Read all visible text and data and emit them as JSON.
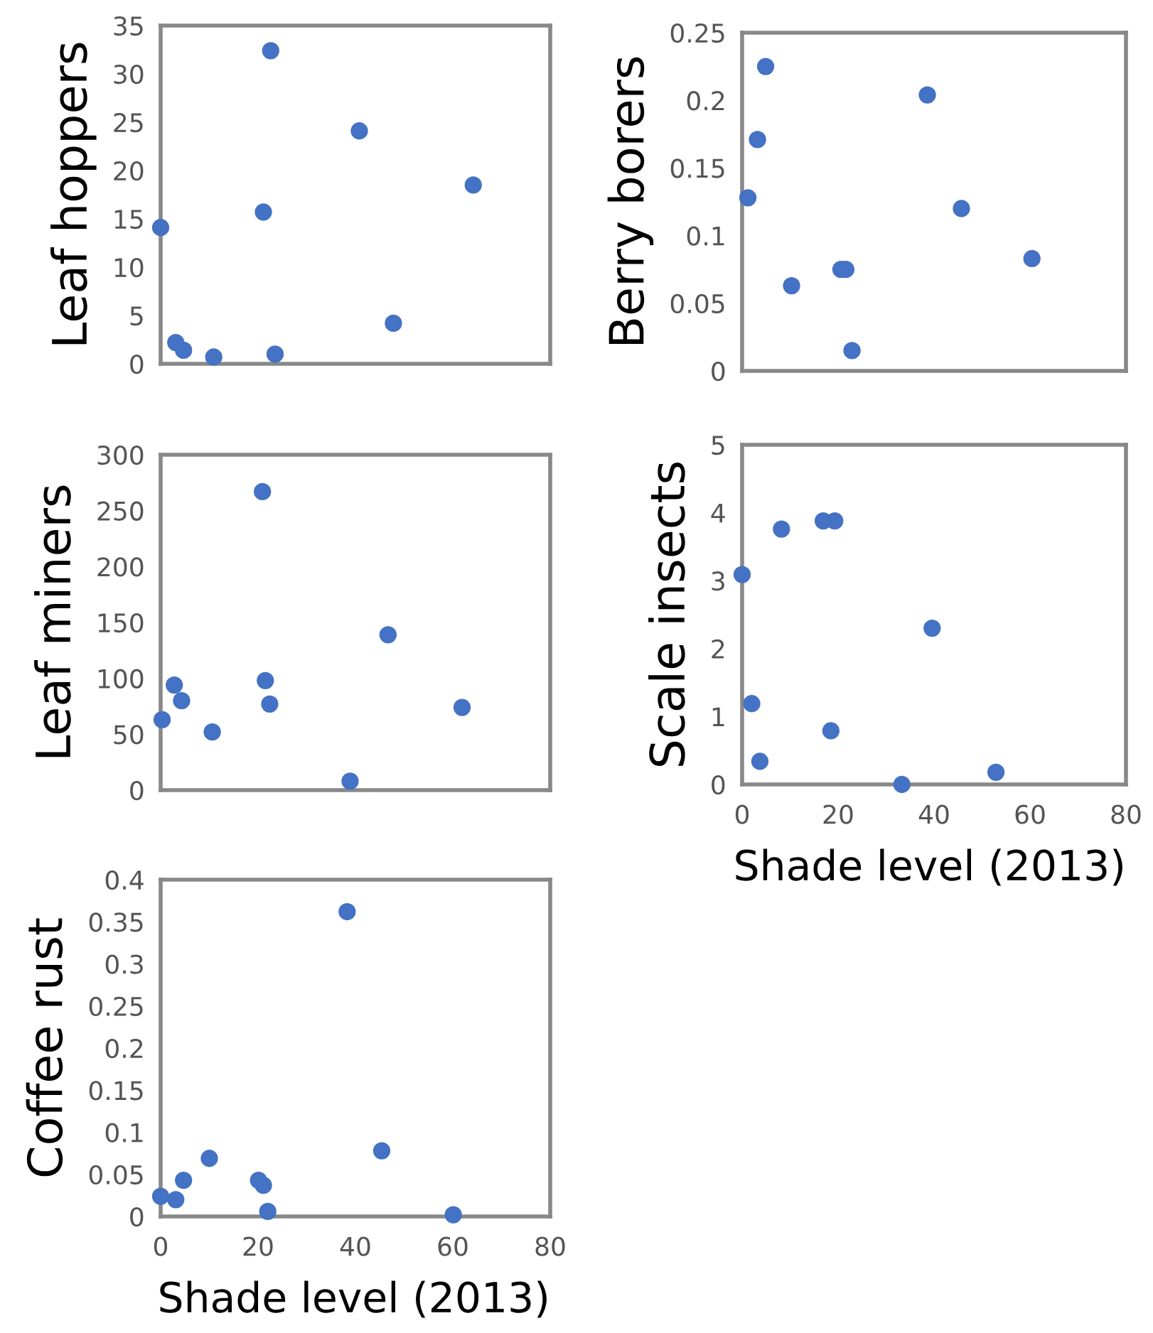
{
  "chart_data": [
    {
      "type": "scatter",
      "ylabel": "Leaf hoppers",
      "xlim": [
        0,
        80
      ],
      "ylim": [
        0,
        35
      ],
      "yticks": [
        0,
        5,
        10,
        15,
        20,
        25,
        30,
        35
      ],
      "xticks": [
        0,
        20,
        40,
        60,
        80
      ],
      "tick_labels": "y",
      "marker": "circle",
      "series": [
        {
          "color": "#4472c4",
          "x": [
            0,
            3.1,
            4.7,
            10.9,
            21.1,
            22.6,
            23.5,
            40.8,
            47.8,
            64.2
          ],
          "values": [
            14.1,
            2.2,
            1.4,
            0.7,
            15.7,
            32.4,
            1.0,
            24.1,
            4.2,
            18.5
          ]
        }
      ]
    },
    {
      "type": "scatter",
      "ylabel": "Berry borers",
      "xlim": [
        0,
        80
      ],
      "ylim": [
        0,
        0.25
      ],
      "yticks": [
        0,
        0.05,
        0.1,
        0.15,
        0.2,
        0.25
      ],
      "xticks": [
        0,
        20,
        40,
        60,
        80
      ],
      "tick_labels": "y",
      "marker": "circle",
      "series": [
        {
          "color": "#4472c4",
          "x": [
            1.2,
            3.2,
            4.9,
            10.3,
            20.6,
            21.6,
            22.9,
            38.6,
            45.7,
            60.4
          ],
          "values": [
            0.128,
            0.171,
            0.225,
            0.063,
            0.075,
            0.075,
            0.015,
            0.204,
            0.12,
            0.083
          ]
        }
      ]
    },
    {
      "type": "scatter",
      "ylabel": "Leaf miners",
      "xlim": [
        0,
        80
      ],
      "ylim": [
        0,
        300
      ],
      "yticks": [
        0,
        50,
        100,
        150,
        200,
        250,
        300
      ],
      "xticks": [
        0,
        20,
        40,
        60,
        80
      ],
      "tick_labels": "y",
      "marker": "circle",
      "series": [
        {
          "color": "#4472c4",
          "x": [
            0.3,
            2.8,
            4.3,
            10.6,
            20.9,
            21.5,
            22.4,
            38.9,
            46.7,
            61.9
          ],
          "values": [
            63,
            94,
            80,
            52,
            267,
            98,
            77,
            8,
            139,
            74
          ]
        }
      ]
    },
    {
      "type": "scatter",
      "ylabel": "Scale insects",
      "xlabel": "Shade level (2013)",
      "xlim": [
        0,
        80
      ],
      "ylim": [
        0,
        5
      ],
      "yticks": [
        0,
        1,
        2,
        3,
        4,
        5
      ],
      "xticks": [
        0,
        20,
        40,
        60,
        80
      ],
      "marker": "circle",
      "series": [
        {
          "color": "#4472c4",
          "x": [
            0,
            2.0,
            3.7,
            8.2,
            16.9,
            19.3,
            18.5,
            33.3,
            39.6,
            52.9
          ],
          "values": [
            3.09,
            1.19,
            0.34,
            3.76,
            3.88,
            3.88,
            0.79,
            0,
            2.3,
            0.18
          ]
        }
      ]
    },
    {
      "type": "scatter",
      "ylabel": "Coffee rust",
      "xlabel": "Shade level (2013)",
      "xlim": [
        0,
        80
      ],
      "ylim": [
        0,
        0.4
      ],
      "yticks": [
        0,
        0.05,
        0.1,
        0.15,
        0.2,
        0.25,
        0.3,
        0.35,
        0.4
      ],
      "xticks": [
        0,
        20,
        40,
        60,
        80
      ],
      "marker": "circle",
      "series": [
        {
          "color": "#4472c4",
          "x": [
            0,
            3.1,
            4.7,
            10.0,
            20.1,
            21.1,
            22.0,
            38.3,
            45.4,
            60.1
          ],
          "values": [
            0.024,
            0.02,
            0.043,
            0.069,
            0.043,
            0.037,
            0.006,
            0.362,
            0.078,
            0.002
          ]
        }
      ]
    }
  ]
}
